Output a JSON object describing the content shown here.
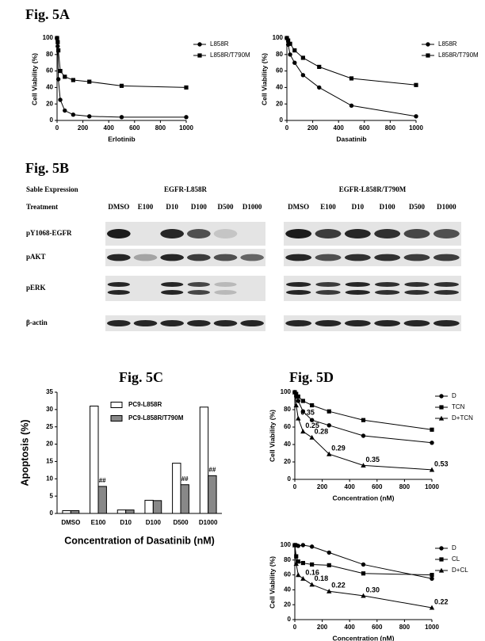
{
  "panels": [
    "Fig. 5A",
    "Fig. 5B",
    "Fig. 5C",
    "Fig. 5D"
  ],
  "blot": {
    "header": "Sable Expression",
    "treatment": "Treatment",
    "groups": [
      "EGFR-L858R",
      "EGFR-L858R/T790M"
    ],
    "lanes": [
      "DMSO",
      "E100",
      "D10",
      "D100",
      "D500",
      "D1000"
    ],
    "rows": [
      "pY1068-EGFR",
      "pAKT",
      "pERK",
      "β-actin"
    ]
  },
  "chart_data": [
    {
      "type": "line",
      "xlabel": "Erlotinib",
      "ylabel": "Cell Viability (%)",
      "x": [
        0,
        5,
        10,
        25,
        60,
        125,
        250,
        500,
        1000
      ],
      "series": [
        {
          "name": "L858R",
          "color": "#000000",
          "marker": "circle",
          "values": [
            100,
            90,
            50,
            25,
            12,
            7,
            5,
            4,
            4
          ]
        },
        {
          "name": "L858R/T790M",
          "color": "#000000",
          "marker": "square",
          "values": [
            100,
            95,
            85,
            60,
            53,
            49,
            47,
            42,
            40
          ]
        }
      ],
      "xlim": [
        0,
        1000
      ],
      "xticks": [
        0,
        200,
        400,
        600,
        800,
        1000
      ],
      "ylim": [
        0,
        100
      ],
      "yticks": [
        0,
        20,
        40,
        60,
        80,
        100
      ],
      "legend": "right"
    },
    {
      "type": "line",
      "xlabel": "Dasatinib",
      "ylabel": "Cell Viability (%)",
      "x": [
        0,
        10,
        25,
        60,
        125,
        250,
        500,
        1000
      ],
      "series": [
        {
          "name": "L858R",
          "color": "#000000",
          "marker": "circle",
          "values": [
            100,
            92,
            80,
            70,
            55,
            40,
            18,
            5
          ]
        },
        {
          "name": "L858R/T790M",
          "color": "#000000",
          "marker": "square",
          "values": [
            100,
            97,
            93,
            85,
            76,
            65,
            51,
            43
          ]
        }
      ],
      "xlim": [
        0,
        1000
      ],
      "xticks": [
        0,
        200,
        400,
        600,
        800,
        1000
      ],
      "ylim": [
        0,
        100
      ],
      "yticks": [
        0,
        20,
        40,
        60,
        80,
        100
      ],
      "legend": "right"
    },
    {
      "type": "bar",
      "xlabel": "Concentration of Dasatinib (nM)",
      "ylabel": "Apoptosis (%)",
      "categories": [
        "DMSO",
        "E100",
        "D10",
        "D100",
        "D500",
        "D1000"
      ],
      "series": [
        {
          "name": "PC9-L858R",
          "color": "#ffffff",
          "values": [
            0.8,
            31,
            1,
            3.8,
            14.5,
            30.7
          ]
        },
        {
          "name": "PC9-L858R/T790M",
          "color": "#888888",
          "values": [
            0.8,
            7.8,
            1,
            3.7,
            8.3,
            10.9
          ],
          "labels": [
            null,
            "##",
            null,
            null,
            "##",
            "##"
          ]
        }
      ],
      "ylim": [
        0,
        35
      ],
      "yticks": [
        0,
        5,
        10,
        15,
        20,
        25,
        30,
        35
      ],
      "legend": "upper center"
    },
    {
      "type": "line",
      "xlabel": "Concentration (nM)",
      "ylabel": "Cell Viability (%)",
      "x": [
        0,
        10,
        25,
        60,
        125,
        250,
        500,
        1000
      ],
      "series": [
        {
          "name": "D",
          "color": "#000000",
          "marker": "circle",
          "values": [
            100,
            95,
            90,
            78,
            68,
            62,
            50,
            42
          ]
        },
        {
          "name": "TCN",
          "color": "#000000",
          "marker": "square",
          "values": [
            100,
            98,
            95,
            90,
            85,
            78,
            68,
            57
          ]
        },
        {
          "name": "D+TCN",
          "color": "#000000",
          "marker": "triangle",
          "values": [
            100,
            85,
            70,
            55,
            48,
            29,
            16,
            11
          ],
          "labels": [
            null,
            null,
            "0.35",
            "0.25",
            "0.28",
            "0.29",
            "0.35",
            "0.53"
          ]
        }
      ],
      "xlim": [
        0,
        1000
      ],
      "xticks": [
        0,
        200,
        400,
        600,
        800,
        1000
      ],
      "ylim": [
        0,
        100
      ],
      "yticks": [
        0,
        20,
        40,
        60,
        80,
        100
      ],
      "legend": "right"
    },
    {
      "type": "line",
      "xlabel": "Concentration (nM)",
      "ylabel": "Cell Viability (%)",
      "x": [
        0,
        10,
        25,
        60,
        125,
        250,
        500,
        1000
      ],
      "series": [
        {
          "name": "D",
          "color": "#000000",
          "marker": "circle",
          "values": [
            100,
            100,
            99,
            100,
            98,
            90,
            74,
            55
          ]
        },
        {
          "name": "CL",
          "color": "#000000",
          "marker": "square",
          "values": [
            100,
            85,
            78,
            76,
            74,
            73,
            62,
            60
          ]
        },
        {
          "name": "D+CL",
          "color": "#000000",
          "marker": "triangle",
          "values": [
            100,
            75,
            60,
            55,
            47,
            38,
            32,
            16
          ],
          "labels": [
            null,
            null,
            null,
            "0.16",
            "0.18",
            "0.22",
            "0.30",
            "0.22"
          ]
        }
      ],
      "xlim": [
        0,
        1000
      ],
      "xticks": [
        0,
        200,
        400,
        600,
        800,
        1000
      ],
      "ylim": [
        0,
        100
      ],
      "yticks": [
        0,
        20,
        40,
        60,
        80,
        100
      ],
      "legend": "right"
    }
  ]
}
